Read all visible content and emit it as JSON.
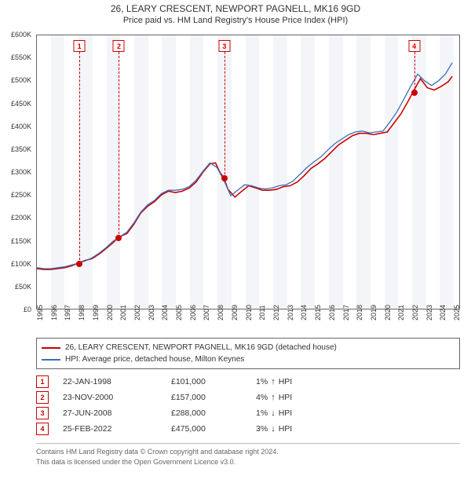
{
  "title_line1": "26, LEARY CRESCENT, NEWPORT PAGNELL, MK16 9GD",
  "title_line2": "Price paid vs. HM Land Registry's House Price Index (HPI)",
  "chart": {
    "type": "line",
    "x_start": 1995,
    "x_end": 2025.5,
    "x_ticks": [
      1995,
      1996,
      1997,
      1998,
      1999,
      2000,
      2001,
      2002,
      2003,
      2004,
      2005,
      2006,
      2007,
      2008,
      2009,
      2010,
      2011,
      2012,
      2013,
      2014,
      2015,
      2016,
      2017,
      2018,
      2019,
      2020,
      2021,
      2022,
      2023,
      2024,
      2025
    ],
    "y_min": 0,
    "y_max": 600,
    "y_ticks": [
      0,
      50,
      100,
      150,
      200,
      250,
      300,
      350,
      400,
      450,
      500,
      550,
      600
    ],
    "y_tick_prefix": "£",
    "y_tick_suffix": "K",
    "alt_band_color": "#f3f5f9",
    "background_color": "#ffffff",
    "border_color": "#666666",
    "series": [
      {
        "name": "26, LEARY CRESCENT, NEWPORT PAGNELL, MK16 9GD (detached house)",
        "color": "#cc0000",
        "width": 1.6,
        "points": [
          [
            1995.0,
            88
          ],
          [
            1995.5,
            86
          ],
          [
            1996.0,
            86
          ],
          [
            1996.5,
            88
          ],
          [
            1997.0,
            90
          ],
          [
            1997.5,
            94
          ],
          [
            1998.06,
            101
          ],
          [
            1998.5,
            106
          ],
          [
            1999.0,
            110
          ],
          [
            1999.5,
            120
          ],
          [
            2000.0,
            132
          ],
          [
            2000.5,
            145
          ],
          [
            2000.9,
            157
          ],
          [
            2001.5,
            165
          ],
          [
            2002.0,
            185
          ],
          [
            2002.5,
            210
          ],
          [
            2003.0,
            225
          ],
          [
            2003.5,
            235
          ],
          [
            2004.0,
            250
          ],
          [
            2004.5,
            258
          ],
          [
            2005.0,
            255
          ],
          [
            2005.5,
            258
          ],
          [
            2006.0,
            265
          ],
          [
            2006.5,
            278
          ],
          [
            2007.0,
            300
          ],
          [
            2007.5,
            318
          ],
          [
            2007.9,
            320
          ],
          [
            2008.2,
            300
          ],
          [
            2008.49,
            288
          ],
          [
            2008.8,
            262
          ],
          [
            2009.3,
            245
          ],
          [
            2009.8,
            258
          ],
          [
            2010.3,
            270
          ],
          [
            2010.8,
            265
          ],
          [
            2011.3,
            260
          ],
          [
            2011.8,
            260
          ],
          [
            2012.3,
            262
          ],
          [
            2012.8,
            268
          ],
          [
            2013.3,
            270
          ],
          [
            2013.8,
            278
          ],
          [
            2014.3,
            292
          ],
          [
            2014.8,
            308
          ],
          [
            2015.3,
            318
          ],
          [
            2015.8,
            330
          ],
          [
            2016.3,
            345
          ],
          [
            2016.8,
            360
          ],
          [
            2017.3,
            370
          ],
          [
            2017.8,
            380
          ],
          [
            2018.3,
            385
          ],
          [
            2018.8,
            385
          ],
          [
            2019.3,
            382
          ],
          [
            2019.8,
            385
          ],
          [
            2020.3,
            388
          ],
          [
            2020.8,
            408
          ],
          [
            2021.3,
            428
          ],
          [
            2021.8,
            455
          ],
          [
            2022.15,
            475
          ],
          [
            2022.7,
            505
          ],
          [
            2023.2,
            485
          ],
          [
            2023.7,
            480
          ],
          [
            2024.2,
            488
          ],
          [
            2024.7,
            498
          ],
          [
            2025.0,
            510
          ]
        ]
      },
      {
        "name": "HPI: Average price, detached house, Milton Keynes",
        "color": "#3b6fb6",
        "width": 1.3,
        "points": [
          [
            1995.0,
            90
          ],
          [
            1995.5,
            88
          ],
          [
            1996.0,
            88
          ],
          [
            1996.5,
            90
          ],
          [
            1997.0,
            92
          ],
          [
            1997.5,
            96
          ],
          [
            1998.0,
            100
          ],
          [
            1998.5,
            105
          ],
          [
            1999.0,
            112
          ],
          [
            1999.5,
            122
          ],
          [
            2000.0,
            134
          ],
          [
            2000.5,
            148
          ],
          [
            2001.0,
            158
          ],
          [
            2001.5,
            168
          ],
          [
            2002.0,
            188
          ],
          [
            2002.5,
            212
          ],
          [
            2003.0,
            228
          ],
          [
            2003.5,
            238
          ],
          [
            2004.0,
            253
          ],
          [
            2004.5,
            260
          ],
          [
            2005.0,
            260
          ],
          [
            2005.5,
            262
          ],
          [
            2006.0,
            268
          ],
          [
            2006.5,
            282
          ],
          [
            2007.0,
            302
          ],
          [
            2007.5,
            320
          ],
          [
            2008.0,
            310
          ],
          [
            2008.5,
            282
          ],
          [
            2009.0,
            248
          ],
          [
            2009.5,
            260
          ],
          [
            2010.0,
            272
          ],
          [
            2010.5,
            270
          ],
          [
            2011.0,
            265
          ],
          [
            2011.5,
            263
          ],
          [
            2012.0,
            265
          ],
          [
            2012.5,
            270
          ],
          [
            2013.0,
            272
          ],
          [
            2013.5,
            280
          ],
          [
            2014.0,
            295
          ],
          [
            2014.5,
            310
          ],
          [
            2015.0,
            322
          ],
          [
            2015.5,
            333
          ],
          [
            2016.0,
            348
          ],
          [
            2016.5,
            362
          ],
          [
            2017.0,
            372
          ],
          [
            2017.5,
            382
          ],
          [
            2018.0,
            388
          ],
          [
            2018.5,
            390
          ],
          [
            2019.0,
            386
          ],
          [
            2019.5,
            388
          ],
          [
            2020.0,
            390
          ],
          [
            2020.5,
            410
          ],
          [
            2021.0,
            432
          ],
          [
            2021.5,
            460
          ],
          [
            2022.0,
            488
          ],
          [
            2022.5,
            515
          ],
          [
            2023.0,
            500
          ],
          [
            2023.5,
            490
          ],
          [
            2024.0,
            500
          ],
          [
            2024.5,
            515
          ],
          [
            2025.0,
            540
          ]
        ]
      }
    ],
    "markers": [
      {
        "n": "1",
        "x": 1998.06,
        "y": 101
      },
      {
        "n": "2",
        "x": 2000.9,
        "y": 157
      },
      {
        "n": "3",
        "x": 2008.49,
        "y": 288
      },
      {
        "n": "4",
        "x": 2022.15,
        "y": 475
      }
    ],
    "marker_color": "#cc0000"
  },
  "legend": {
    "items": [
      {
        "color": "#cc0000",
        "label": "26, LEARY CRESCENT, NEWPORT PAGNELL, MK16 9GD (detached house)"
      },
      {
        "color": "#3b6fb6",
        "label": "HPI: Average price, detached house, Milton Keynes"
      }
    ]
  },
  "transactions": [
    {
      "n": "1",
      "date": "22-JAN-1998",
      "price": "£101,000",
      "delta_pct": "1%",
      "direction": "up",
      "vs": "HPI"
    },
    {
      "n": "2",
      "date": "23-NOV-2000",
      "price": "£157,000",
      "delta_pct": "4%",
      "direction": "up",
      "vs": "HPI"
    },
    {
      "n": "3",
      "date": "27-JUN-2008",
      "price": "£288,000",
      "delta_pct": "1%",
      "direction": "down",
      "vs": "HPI"
    },
    {
      "n": "4",
      "date": "25-FEB-2022",
      "price": "£475,000",
      "delta_pct": "3%",
      "direction": "down",
      "vs": "HPI"
    }
  ],
  "footer": {
    "line1": "Contains HM Land Registry data © Crown copyright and database right 2024.",
    "line2": "This data is licensed under the Open Government Licence v3.0."
  }
}
